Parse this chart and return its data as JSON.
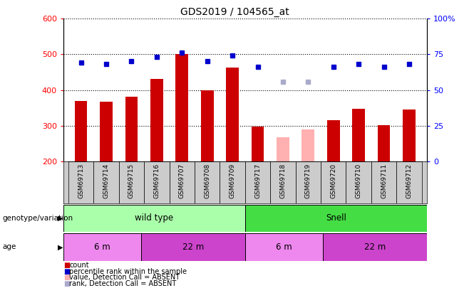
{
  "title": "GDS2019 / 104565_at",
  "samples": [
    "GSM69713",
    "GSM69714",
    "GSM69715",
    "GSM69716",
    "GSM69707",
    "GSM69708",
    "GSM69709",
    "GSM69717",
    "GSM69718",
    "GSM69719",
    "GSM69720",
    "GSM69710",
    "GSM69711",
    "GSM69712"
  ],
  "count_values": [
    370,
    367,
    382,
    432,
    500,
    400,
    463,
    298,
    267,
    290,
    315,
    348,
    302,
    345
  ],
  "count_absent": [
    false,
    false,
    false,
    false,
    false,
    false,
    false,
    false,
    true,
    true,
    false,
    false,
    false,
    false
  ],
  "percentile_values": [
    69,
    68,
    70,
    73,
    76,
    70,
    74,
    66,
    56,
    56,
    66,
    68,
    66,
    68
  ],
  "percentile_absent": [
    false,
    false,
    false,
    false,
    false,
    false,
    false,
    false,
    true,
    true,
    false,
    false,
    false,
    false
  ],
  "ylim_left": [
    200,
    600
  ],
  "ylim_right": [
    0,
    100
  ],
  "yticks_left": [
    200,
    300,
    400,
    500,
    600
  ],
  "ytick_labels_left": [
    "200",
    "300",
    "400",
    "500",
    "600"
  ],
  "yticks_right": [
    0,
    25,
    50,
    75,
    100
  ],
  "ytick_labels_right": [
    "0",
    "25",
    "50",
    "75",
    "100%"
  ],
  "bar_color_normal": "#cc0000",
  "bar_color_absent": "#ffb0b0",
  "dot_color_normal": "#0000cc",
  "dot_color_absent": "#aaaacc",
  "bar_width": 0.5,
  "genotype_groups": [
    {
      "label": "wild type",
      "start": 0,
      "end": 6,
      "color": "#aaffaa"
    },
    {
      "label": "Snell",
      "start": 7,
      "end": 13,
      "color": "#44dd44"
    }
  ],
  "age_groups": [
    {
      "label": "6 m",
      "start": 0,
      "end": 2,
      "color": "#ee88ee"
    },
    {
      "label": "22 m",
      "start": 3,
      "end": 6,
      "color": "#cc44cc"
    },
    {
      "label": "6 m",
      "start": 7,
      "end": 9,
      "color": "#ee88ee"
    },
    {
      "label": "22 m",
      "start": 10,
      "end": 13,
      "color": "#cc44cc"
    }
  ],
  "legend_items": [
    {
      "label": "count",
      "color": "#cc0000"
    },
    {
      "label": "percentile rank within the sample",
      "color": "#0000cc"
    },
    {
      "label": "value, Detection Call = ABSENT",
      "color": "#ffb0b0"
    },
    {
      "label": "rank, Detection Call = ABSENT",
      "color": "#aaaacc"
    }
  ],
  "plot_bg": "#ffffff",
  "xtick_bg": "#cccccc",
  "grid_color": "#000000",
  "border_color": "#000000"
}
